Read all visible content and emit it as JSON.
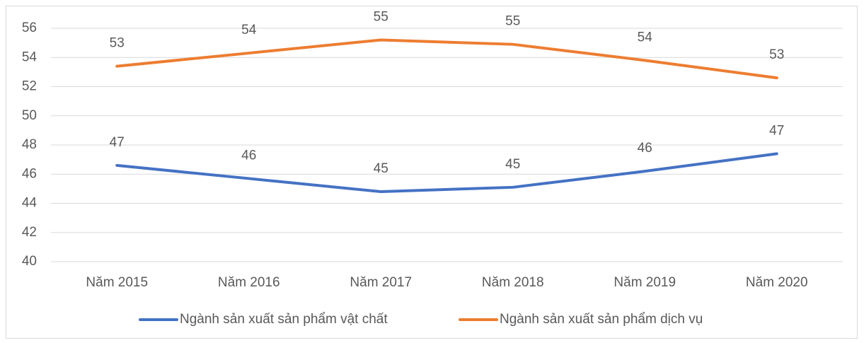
{
  "chart_data": {
    "type": "line",
    "categories": [
      "Năm 2015",
      "Năm 2016",
      "Năm 2017",
      "Năm 2018",
      "Năm 2019",
      "Năm 2020"
    ],
    "series": [
      {
        "name": "Ngành sản xuất sản phẩm vật chất",
        "color": "#4472c4",
        "values": [
          46.6,
          45.7,
          44.8,
          45.1,
          46.2,
          47.4
        ],
        "value_labels": [
          "47",
          "46",
          "45",
          "45",
          "46",
          "47"
        ]
      },
      {
        "name": "Ngành sản xuất sản phẩm dịch vụ",
        "color": "#ed7d31",
        "values": [
          53.4,
          54.3,
          55.2,
          54.9,
          53.8,
          52.6
        ],
        "value_labels": [
          "53",
          "54",
          "55",
          "55",
          "54",
          "53"
        ]
      }
    ],
    "ylim": [
      40,
      56
    ],
    "yticks": [
      40,
      42,
      44,
      46,
      48,
      50,
      52,
      54,
      56
    ],
    "grid": true,
    "legend": "bottom"
  }
}
